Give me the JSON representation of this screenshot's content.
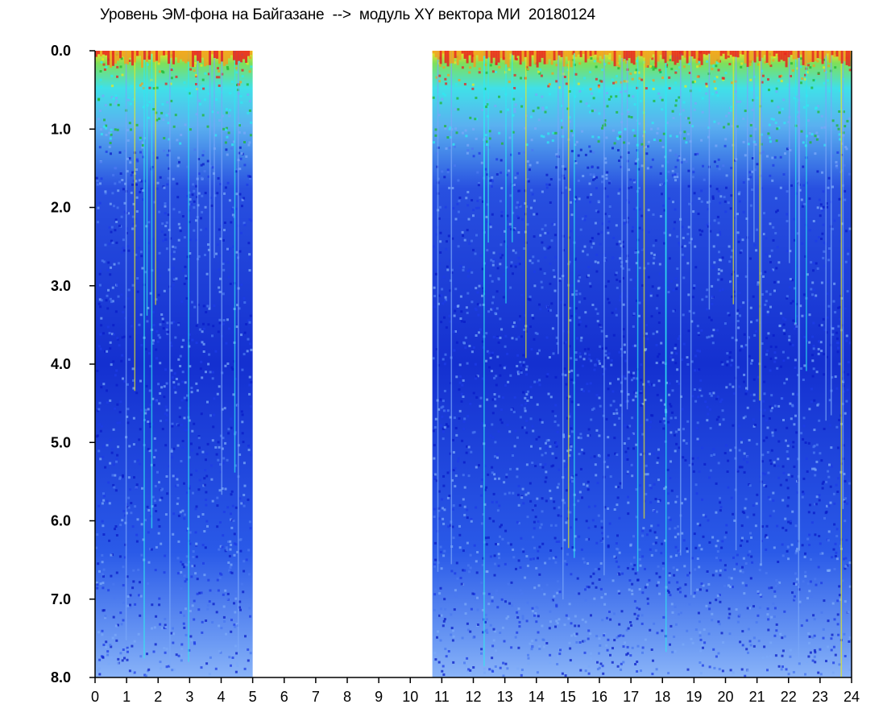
{
  "chart_data": {
    "type": "heatmap",
    "title": "Уровень ЭМ-фона на Байгазане  -->  модуль XY вектора МИ  20180124",
    "xlabel": "",
    "ylabel": "",
    "xlim": [
      0,
      24
    ],
    "ylim": [
      0,
      8
    ],
    "y_axis_inverted": true,
    "x_ticks": [
      0,
      1,
      2,
      3,
      4,
      5,
      6,
      7,
      8,
      9,
      10,
      11,
      12,
      13,
      14,
      15,
      16,
      17,
      18,
      19,
      20,
      21,
      22,
      23,
      24
    ],
    "x_tick_labels": [
      "0",
      "1",
      "2",
      "3",
      "4",
      "5",
      "6",
      "7",
      "8",
      "9",
      "10",
      "11",
      "12",
      "13",
      "14",
      "15",
      "16",
      "17",
      "18",
      "19",
      "20",
      "21",
      "22",
      "23",
      "24"
    ],
    "y_ticks": [
      0,
      1,
      2,
      3,
      4,
      5,
      6,
      7,
      8
    ],
    "y_tick_labels": [
      "0.0",
      "1.0",
      "2.0",
      "3.0",
      "4.0",
      "5.0",
      "6.0",
      "7.0",
      "8.0"
    ],
    "data_segments": [
      {
        "x_start": 0,
        "x_end": 5.0
      },
      {
        "x_start": 10.7,
        "x_end": 24
      }
    ],
    "gap": {
      "x_start": 5.0,
      "x_end": 10.7
    },
    "colormap": [
      "#0a1ec8",
      "#1e3ce6",
      "#4a78f0",
      "#7aa8f8",
      "#30e8f0",
      "#20b830",
      "#e8e820",
      "#f0a020",
      "#e82020"
    ],
    "grid": false,
    "legend": "none"
  }
}
